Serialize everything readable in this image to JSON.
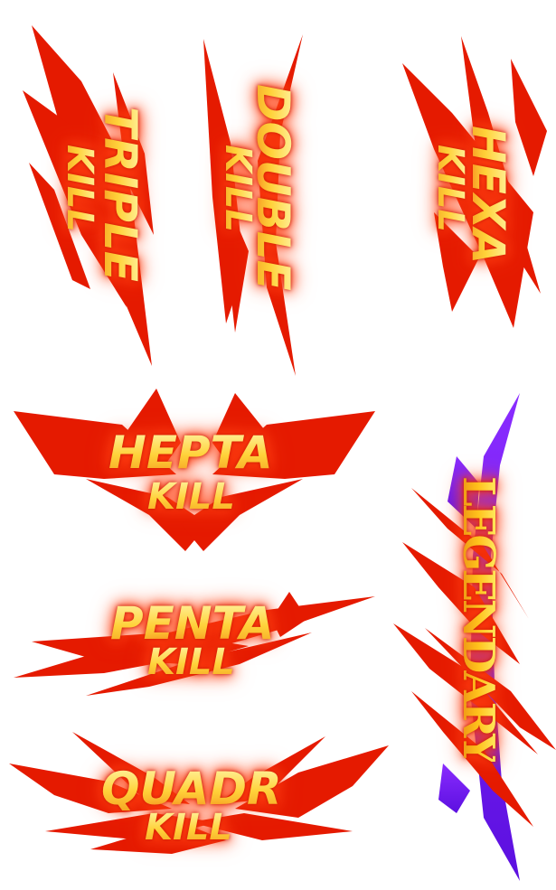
{
  "badges": {
    "triple": {
      "line1": "TRIPLE",
      "line2": "KILL"
    },
    "double": {
      "line1": "DOUBLE",
      "line2": "KILL"
    },
    "hexa": {
      "line1": "HEXA",
      "line2": "KILL"
    },
    "hepta": {
      "line1": "HEPTA",
      "line2": "KILL"
    },
    "penta": {
      "line1": "PENTA",
      "line2": "KILL"
    },
    "quadr": {
      "line1": "QUADR",
      "line2": "KILL"
    },
    "legendary": {
      "line1": "LEGENDARY"
    }
  },
  "colors": {
    "spike_red": "#e51a00",
    "spike_dark": "#c01000",
    "text_gold": "#ffd23a",
    "legend_purple": "#7b1cff"
  }
}
